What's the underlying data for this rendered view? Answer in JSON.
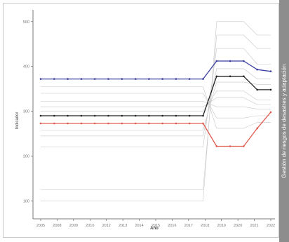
{
  "sidebar": {
    "text": "Gestión de riesgos de desastres y adaptación"
  },
  "chart_data": {
    "type": "line",
    "xlabel": "Año",
    "ylabel": "Indicador",
    "x": [
      "2005",
      "2006",
      "2007",
      "2008",
      "2009",
      "2010",
      "2011",
      "2012",
      "2013",
      "2014",
      "2015",
      "2016",
      "2017",
      "2018",
      "2019",
      "2020",
      "2021",
      "2022"
    ],
    "x_tick_labels": [
      "2005",
      "2008",
      "2009",
      "2010",
      "2012",
      "2013",
      "2014",
      "2015",
      "2016",
      "2017",
      "2018",
      "2019",
      "2020",
      "2021",
      "2022"
    ],
    "y_tick_labels": [
      "100",
      "200",
      "300",
      "400",
      "500"
    ],
    "ylim": [
      60,
      520
    ],
    "grid": false,
    "series": [
      {
        "color": "#3b3fa0",
        "marker": true,
        "values": [
          372,
          372,
          372,
          372,
          372,
          372,
          372,
          372,
          372,
          372,
          372,
          372,
          372,
          412,
          412,
          412,
          393,
          389
        ]
      },
      {
        "color": "#222222",
        "marker": true,
        "values": [
          290,
          290,
          290,
          290,
          290,
          290,
          290,
          290,
          290,
          290,
          290,
          290,
          290,
          378,
          378,
          378,
          348,
          348
        ]
      },
      {
        "color": "#e05a4e",
        "marker": true,
        "values": [
          273,
          273,
          273,
          273,
          273,
          273,
          273,
          273,
          273,
          273,
          273,
          273,
          273,
          222,
          222,
          222,
          262,
          298
        ]
      },
      {
        "color": "#c8c8c8",
        "marker": false,
        "values": [
          100,
          100,
          100,
          100,
          100,
          100,
          100,
          100,
          100,
          100,
          100,
          100,
          100,
          500,
          500,
          500,
          470,
          470
        ]
      },
      {
        "color": "#c8c8c8",
        "marker": false,
        "values": [
          125,
          125,
          125,
          125,
          125,
          125,
          125,
          125,
          125,
          125,
          125,
          125,
          125,
          470,
          470,
          470,
          440,
          440
        ]
      },
      {
        "color": "#c8c8c8",
        "marker": false,
        "values": [
          220,
          220,
          220,
          220,
          220,
          220,
          220,
          220,
          220,
          220,
          220,
          220,
          220,
          440,
          440,
          440,
          405,
          405
        ]
      },
      {
        "color": "#c8c8c8",
        "marker": false,
        "values": [
          245,
          245,
          245,
          245,
          245,
          245,
          245,
          245,
          245,
          245,
          245,
          245,
          245,
          395,
          395,
          395,
          372,
          372
        ]
      },
      {
        "color": "#c8c8c8",
        "marker": false,
        "values": [
          258,
          258,
          258,
          258,
          258,
          258,
          258,
          258,
          258,
          258,
          258,
          258,
          258,
          365,
          365,
          365,
          360,
          360
        ]
      },
      {
        "color": "#c8c8c8",
        "marker": false,
        "values": [
          300,
          300,
          300,
          300,
          300,
          300,
          300,
          300,
          300,
          300,
          300,
          300,
          300,
          345,
          345,
          345,
          325,
          325
        ]
      },
      {
        "color": "#c8c8c8",
        "marker": false,
        "values": [
          310,
          310,
          310,
          310,
          310,
          310,
          310,
          310,
          310,
          310,
          310,
          310,
          310,
          330,
          330,
          330,
          315,
          315
        ]
      },
      {
        "color": "#c8c8c8",
        "marker": false,
        "values": [
          322,
          322,
          322,
          322,
          322,
          322,
          322,
          322,
          322,
          322,
          322,
          322,
          322,
          310,
          310,
          310,
          305,
          305
        ]
      },
      {
        "color": "#c8c8c8",
        "marker": false,
        "values": [
          340,
          340,
          340,
          340,
          340,
          340,
          340,
          340,
          340,
          340,
          340,
          340,
          340,
          285,
          285,
          285,
          290,
          290
        ]
      },
      {
        "color": "#c8c8c8",
        "marker": false,
        "values": [
          355,
          355,
          355,
          355,
          355,
          355,
          355,
          355,
          355,
          355,
          355,
          355,
          355,
          262,
          262,
          262,
          275,
          275
        ]
      }
    ]
  }
}
